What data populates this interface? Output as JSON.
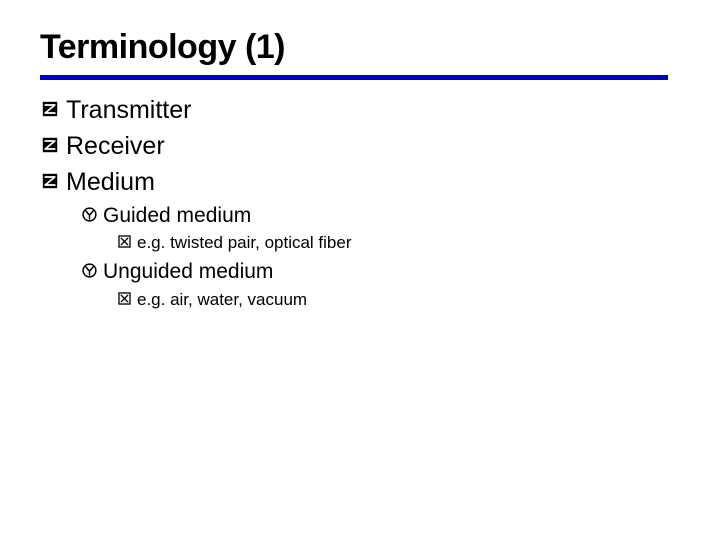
{
  "title": "Terminology (1)",
  "colors": {
    "rule": "#0000cc",
    "bullet_fill": "#000000",
    "bullet_stroke": "#000000",
    "text": "#000000",
    "background": "#ffffff"
  },
  "bullets": {
    "lvl1": {
      "type": "z-square",
      "size": 16
    },
    "lvl2": {
      "type": "y-circle",
      "size": 15
    },
    "lvl3": {
      "type": "x-square",
      "size": 13
    }
  },
  "items": [
    {
      "level": 1,
      "text": "Transmitter"
    },
    {
      "level": 1,
      "text": "Receiver"
    },
    {
      "level": 1,
      "text": "Medium"
    },
    {
      "level": 2,
      "text": "Guided medium"
    },
    {
      "level": 3,
      "text": "e.g. twisted pair, optical fiber"
    },
    {
      "level": 2,
      "text": "Unguided medium"
    },
    {
      "level": 3,
      "text": "e.g. air, water, vacuum"
    }
  ]
}
